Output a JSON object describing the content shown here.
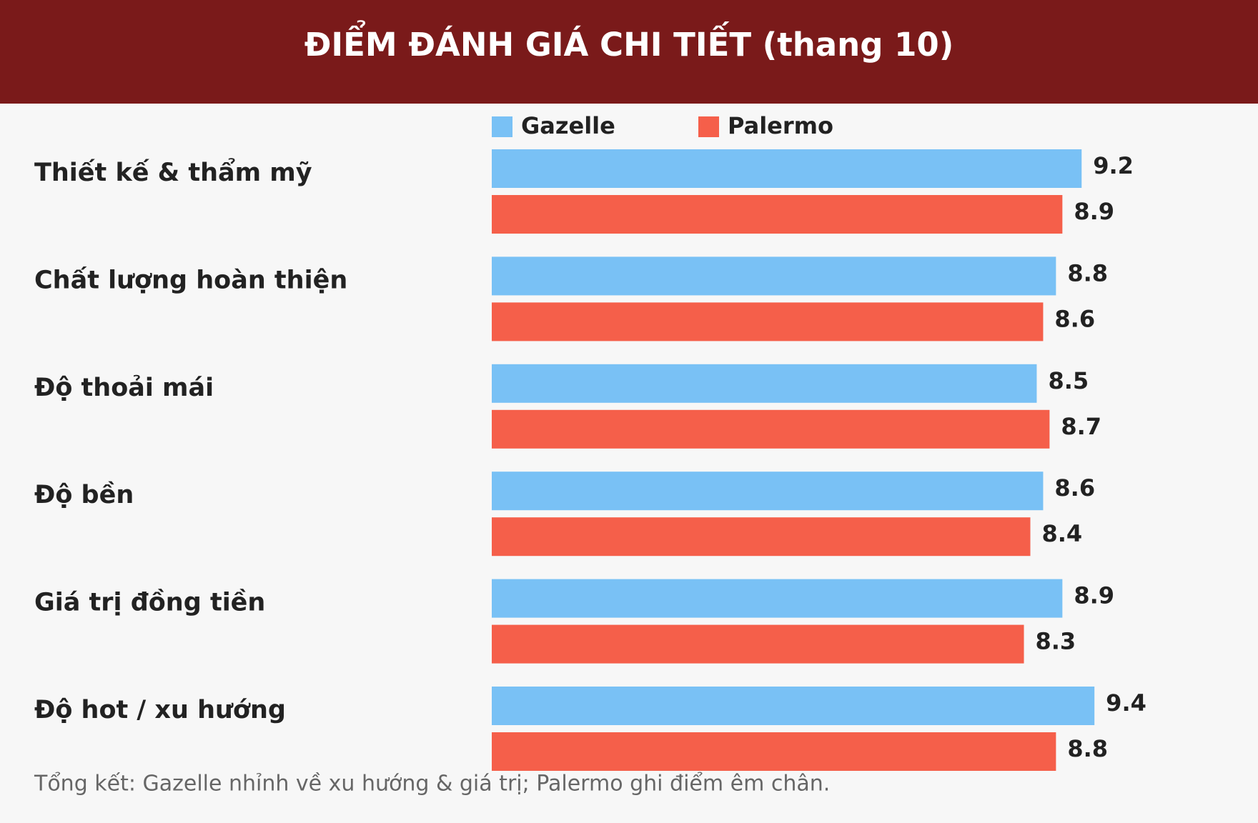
{
  "chart_data": {
    "type": "bar",
    "orientation": "horizontal",
    "title": "ĐIỂM ĐÁNH GIÁ CHI TIẾT (thang 10)",
    "categories": [
      "Thiết kế & thẩm mỹ",
      "Chất lượng hoàn thiện",
      "Độ thoải mái",
      "Độ bền",
      "Giá trị đồng tiền",
      "Độ hot / xu hướng"
    ],
    "series": [
      {
        "name": "Gazelle",
        "color": "#79c1f5",
        "values": [
          9.2,
          8.8,
          8.5,
          8.6,
          8.9,
          9.4
        ]
      },
      {
        "name": "Palermo",
        "color": "#f55f4a",
        "values": [
          8.9,
          8.6,
          8.7,
          8.4,
          8.3,
          8.8
        ]
      }
    ],
    "footnote": "Tổng kết: Gazelle nhỉnh về xu hướng & giá trị; Palermo ghi điểm êm chân."
  }
}
